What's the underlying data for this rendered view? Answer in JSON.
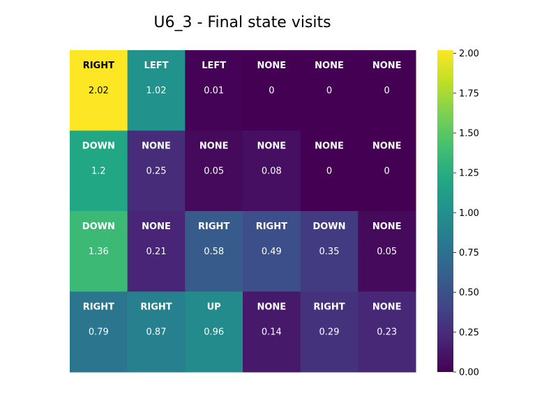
{
  "chart_data": {
    "type": "heatmap",
    "title": "U6_3 - Final state visits",
    "rows": 4,
    "cols": 6,
    "actions": [
      [
        "RIGHT",
        "LEFT",
        "LEFT",
        "NONE",
        "NONE",
        "NONE"
      ],
      [
        "DOWN",
        "NONE",
        "NONE",
        "NONE",
        "NONE",
        "NONE"
      ],
      [
        "DOWN",
        "NONE",
        "RIGHT",
        "RIGHT",
        "DOWN",
        "NONE"
      ],
      [
        "RIGHT",
        "RIGHT",
        "UP",
        "NONE",
        "RIGHT",
        "NONE"
      ]
    ],
    "values": [
      [
        2.02,
        1.02,
        0.01,
        0,
        0,
        0
      ],
      [
        1.2,
        0.25,
        0.05,
        0.08,
        0,
        0
      ],
      [
        1.36,
        0.21,
        0.58,
        0.49,
        0.35,
        0.05
      ],
      [
        0.79,
        0.87,
        0.96,
        0.14,
        0.29,
        0.23
      ]
    ],
    "value_labels": [
      [
        "2.02",
        "1.02",
        "0.01",
        "0",
        "0",
        "0"
      ],
      [
        "1.2",
        "0.25",
        "0.05",
        "0.08",
        "0",
        "0"
      ],
      [
        "1.36",
        "0.21",
        "0.58",
        "0.49",
        "0.35",
        "0.05"
      ],
      [
        "0.79",
        "0.87",
        "0.96",
        "0.14",
        "0.29",
        "0.23"
      ]
    ],
    "colormap": "viridis",
    "vmin": 0,
    "vmax": 2.02,
    "colorbar_ticks": [
      0.0,
      0.25,
      0.5,
      0.75,
      1.0,
      1.25,
      1.5,
      1.75,
      2.0
    ],
    "colorbar_tick_labels": [
      "0.00",
      "0.25",
      "0.50",
      "0.75",
      "1.00",
      "1.25",
      "1.50",
      "1.75",
      "2.00"
    ]
  }
}
